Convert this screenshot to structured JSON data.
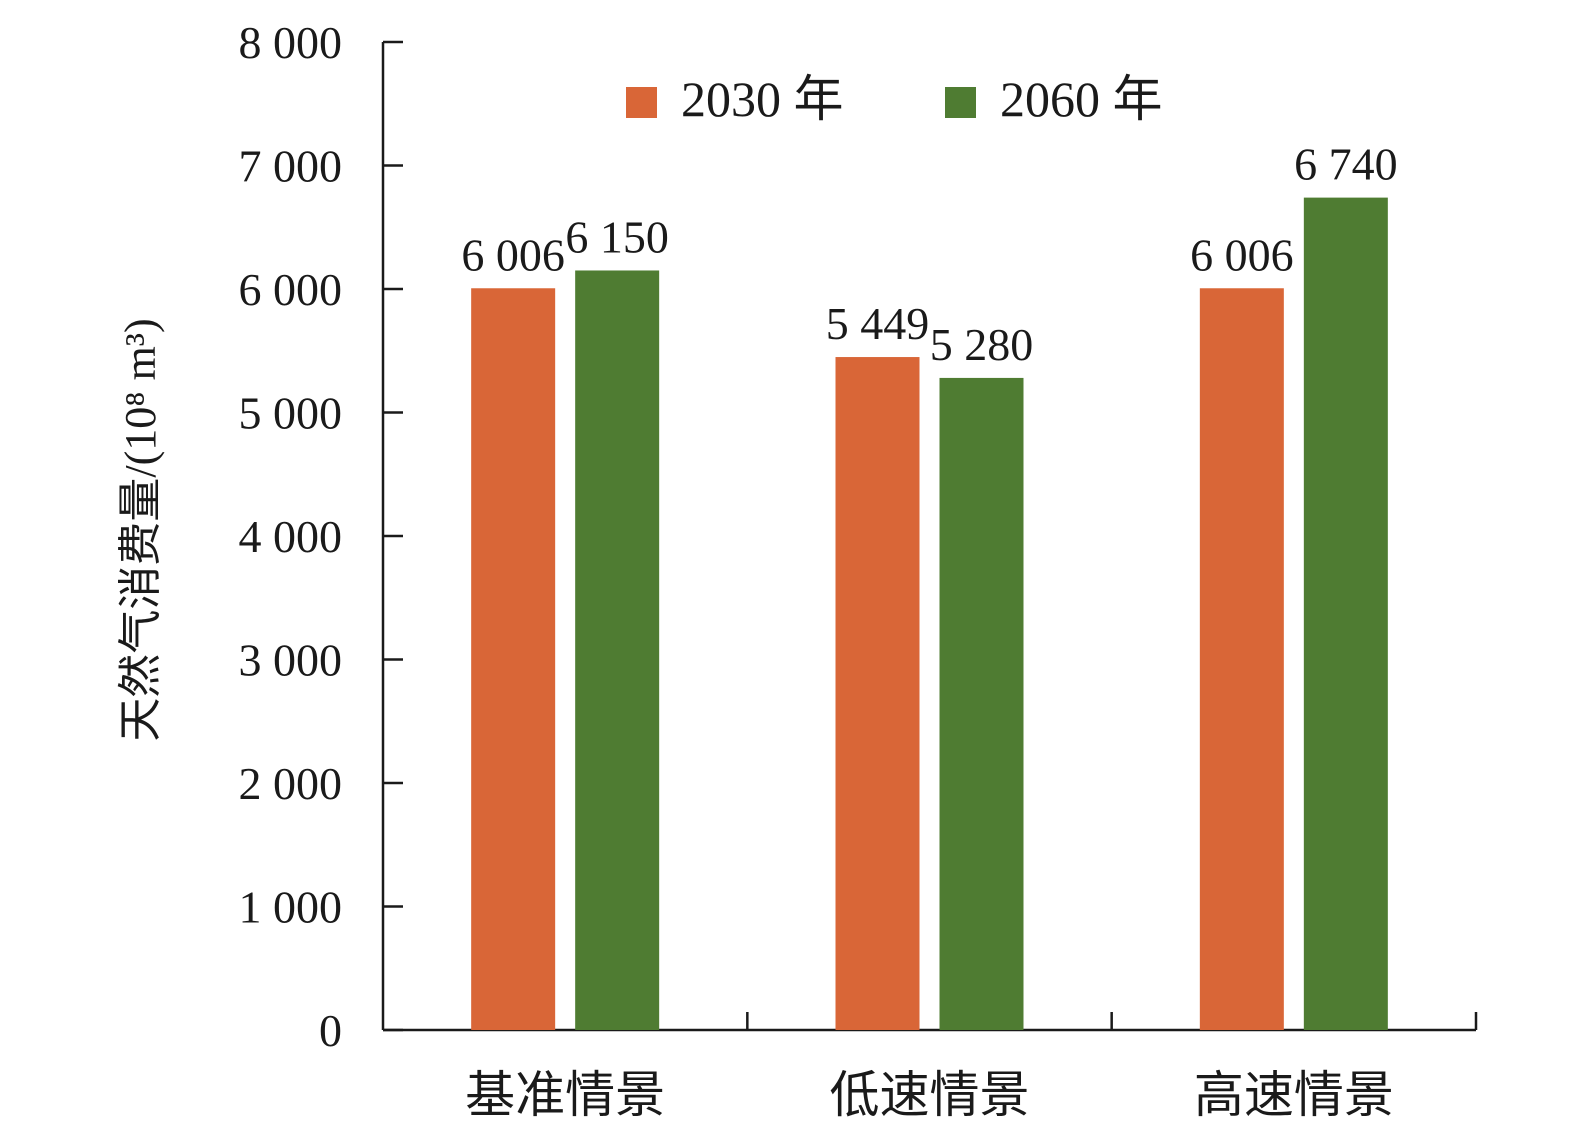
{
  "chart_data": {
    "type": "bar",
    "title": "",
    "xlabel": "",
    "ylabel": "天然气消费量/(10⁸ m³)",
    "ylim": [
      0,
      8000
    ],
    "yticks": [
      0,
      1000,
      2000,
      3000,
      4000,
      5000,
      6000,
      7000,
      8000
    ],
    "ytick_labels": [
      "0",
      "1 000",
      "2 000",
      "3 000",
      "4 000",
      "5 000",
      "6 000",
      "7 000",
      "8 000"
    ],
    "categories": [
      "基准情景",
      "低速情景",
      "高速情景"
    ],
    "series": [
      {
        "name": "2030 年",
        "color": "#d96637",
        "values": [
          6006,
          5449,
          6006
        ],
        "value_labels": [
          "6 006",
          "5 449",
          "6 006"
        ]
      },
      {
        "name": "2060 年",
        "color": "#4f7c32",
        "values": [
          6150,
          5280,
          6740
        ],
        "value_labels": [
          "6 150",
          "5 280",
          "6 740"
        ]
      }
    ],
    "legend_position": "top-center"
  }
}
